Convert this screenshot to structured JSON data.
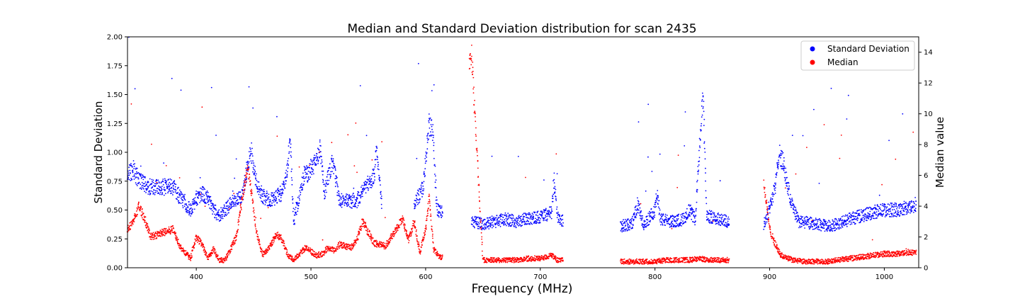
{
  "chart_data": {
    "type": "scatter",
    "title": "Median and Standard Deviation distribution for scan 2435",
    "xlabel": "Frequency (MHz)",
    "ylabel": "Standard Deviation",
    "ylabel_right": "Median value",
    "xlim": [
      340,
      1030
    ],
    "ylim": [
      0,
      2.0
    ],
    "ylim_right": [
      0,
      15
    ],
    "x_ticks": [
      400,
      500,
      600,
      700,
      800,
      900,
      1000
    ],
    "y_ticks": [
      0.0,
      0.25,
      0.5,
      0.75,
      1.0,
      1.25,
      1.5,
      1.75,
      2.0
    ],
    "y_tick_labels": [
      "0.00",
      "0.25",
      "0.50",
      "0.75",
      "1.00",
      "1.25",
      "1.50",
      "1.75",
      "2.00"
    ],
    "y_right_ticks": [
      0,
      2,
      4,
      6,
      8,
      10,
      12,
      14
    ],
    "grid": false,
    "legend_position": "top-right",
    "series": [
      {
        "name": "Standard Deviation",
        "color": "#0000ff",
        "axis": "left",
        "segments": [
          [
            340,
            0.8
          ],
          [
            345,
            0.85
          ],
          [
            350,
            0.76
          ],
          [
            355,
            0.72
          ],
          [
            360,
            0.7
          ],
          [
            380,
            0.7
          ],
          [
            385,
            0.62
          ],
          [
            390,
            0.55
          ],
          [
            395,
            0.5
          ],
          [
            400,
            0.6
          ],
          [
            405,
            0.65
          ],
          [
            410,
            0.6
          ],
          [
            415,
            0.5
          ],
          [
            420,
            0.45
          ],
          [
            425,
            0.5
          ],
          [
            430,
            0.55
          ],
          [
            435,
            0.6
          ],
          [
            440,
            0.62
          ],
          [
            445,
            0.9
          ],
          [
            448,
            1.0
          ],
          [
            452,
            0.75
          ],
          [
            458,
            0.62
          ],
          [
            465,
            0.58
          ],
          [
            470,
            0.62
          ],
          [
            475,
            0.65
          ],
          [
            480,
            0.9
          ],
          [
            482,
            1.1
          ],
          [
            485,
            0.4
          ],
          [
            495,
            0.85
          ],
          [
            497,
            0.8
          ],
          [
            505,
            0.95
          ],
          [
            508,
            1.05
          ],
          [
            512,
            0.65
          ],
          [
            518,
            0.9
          ],
          [
            520,
            0.85
          ],
          [
            525,
            0.58
          ],
          [
            540,
            0.58
          ],
          [
            555,
            0.8
          ],
          [
            557,
            1.0
          ],
          [
            562,
            0.55
          ],
          [
            590,
            0.55
          ],
          [
            598,
            0.7
          ],
          [
            603,
            1.25
          ],
          [
            606,
            1.2
          ],
          [
            610,
            0.5
          ],
          [
            615,
            0.48
          ],
          [
            640,
            0.4
          ],
          [
            650,
            0.38
          ],
          [
            660,
            0.4
          ],
          [
            670,
            0.42
          ],
          [
            680,
            0.4
          ],
          [
            690,
            0.43
          ],
          [
            700,
            0.44
          ],
          [
            710,
            0.48
          ],
          [
            712,
            0.75
          ],
          [
            715,
            0.45
          ],
          [
            720,
            0.4
          ],
          [
            770,
            0.36
          ],
          [
            780,
            0.38
          ],
          [
            785,
            0.55
          ],
          [
            790,
            0.36
          ],
          [
            800,
            0.5
          ],
          [
            802,
            0.65
          ],
          [
            805,
            0.42
          ],
          [
            815,
            0.4
          ],
          [
            825,
            0.42
          ],
          [
            830,
            0.5
          ],
          [
            835,
            0.42
          ],
          [
            842,
            1.5
          ],
          [
            845,
            0.45
          ],
          [
            855,
            0.42
          ],
          [
            865,
            0.4
          ],
          [
            895,
            0.36
          ],
          [
            905,
            0.7
          ],
          [
            908,
            1.0
          ],
          [
            912,
            0.9
          ],
          [
            918,
            0.6
          ],
          [
            925,
            0.4
          ],
          [
            940,
            0.38
          ],
          [
            950,
            0.36
          ],
          [
            960,
            0.38
          ],
          [
            970,
            0.42
          ],
          [
            980,
            0.45
          ],
          [
            990,
            0.48
          ],
          [
            1000,
            0.5
          ],
          [
            1010,
            0.5
          ],
          [
            1020,
            0.52
          ],
          [
            1028,
            0.55
          ]
        ]
      },
      {
        "name": "Median",
        "color": "#ff0000",
        "axis": "right",
        "segments": [
          [
            340,
            2.5
          ],
          [
            345,
            3.0
          ],
          [
            350,
            4.0
          ],
          [
            355,
            3.2
          ],
          [
            360,
            2.0
          ],
          [
            380,
            2.5
          ],
          [
            385,
            1.5
          ],
          [
            390,
            1.0
          ],
          [
            395,
            0.6
          ],
          [
            400,
            2.0
          ],
          [
            405,
            1.5
          ],
          [
            410,
            0.6
          ],
          [
            415,
            1.2
          ],
          [
            420,
            0.5
          ],
          [
            425,
            0.5
          ],
          [
            430,
            1.2
          ],
          [
            435,
            2.0
          ],
          [
            440,
            4.5
          ],
          [
            445,
            6.5
          ],
          [
            448,
            5.0
          ],
          [
            452,
            2.5
          ],
          [
            458,
            0.8
          ],
          [
            465,
            1.5
          ],
          [
            470,
            2.2
          ],
          [
            475,
            1.8
          ],
          [
            480,
            0.8
          ],
          [
            485,
            0.5
          ],
          [
            495,
            1.3
          ],
          [
            505,
            0.8
          ],
          [
            510,
            0.9
          ],
          [
            515,
            1.3
          ],
          [
            520,
            1.1
          ],
          [
            525,
            1.5
          ],
          [
            535,
            1.3
          ],
          [
            540,
            1.8
          ],
          [
            545,
            3.0
          ],
          [
            555,
            1.6
          ],
          [
            560,
            1.5
          ],
          [
            565,
            1.4
          ],
          [
            575,
            2.6
          ],
          [
            580,
            3.2
          ],
          [
            585,
            1.8
          ],
          [
            590,
            3.0
          ],
          [
            595,
            1.0
          ],
          [
            600,
            2.5
          ],
          [
            603,
            4.5
          ],
          [
            607,
            1.2
          ],
          [
            612,
            0.7
          ],
          [
            615,
            0.7
          ],
          [
            638,
            13.0
          ],
          [
            640,
            14.0
          ],
          [
            650,
            0.5
          ],
          [
            660,
            0.5
          ],
          [
            670,
            0.5
          ],
          [
            680,
            0.5
          ],
          [
            690,
            0.6
          ],
          [
            700,
            0.6
          ],
          [
            710,
            0.8
          ],
          [
            715,
            0.5
          ],
          [
            720,
            0.5
          ],
          [
            770,
            0.4
          ],
          [
            780,
            0.4
          ],
          [
            790,
            0.4
          ],
          [
            800,
            0.4
          ],
          [
            810,
            0.5
          ],
          [
            820,
            0.5
          ],
          [
            830,
            0.5
          ],
          [
            840,
            0.6
          ],
          [
            845,
            0.5
          ],
          [
            855,
            0.5
          ],
          [
            865,
            0.5
          ],
          [
            895,
            5.5
          ],
          [
            900,
            2.5
          ],
          [
            905,
            1.5
          ],
          [
            910,
            0.8
          ],
          [
            920,
            0.5
          ],
          [
            930,
            0.4
          ],
          [
            940,
            0.4
          ],
          [
            950,
            0.4
          ],
          [
            960,
            0.5
          ],
          [
            970,
            0.6
          ],
          [
            980,
            0.7
          ],
          [
            990,
            0.8
          ],
          [
            1000,
            0.9
          ],
          [
            1010,
            0.9
          ],
          [
            1020,
            1.0
          ],
          [
            1028,
            1.0
          ]
        ]
      }
    ]
  }
}
